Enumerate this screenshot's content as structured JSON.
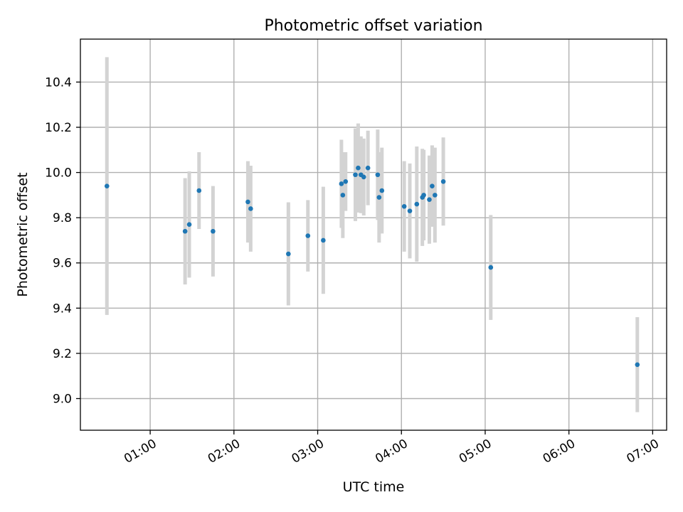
{
  "chart_data": {
    "type": "scatter",
    "title": "Photometric offset variation",
    "xlabel": "UTC time",
    "ylabel": "Photometric offset",
    "xlim": [
      "00:10",
      "07:10"
    ],
    "ylim": [
      8.86,
      10.59
    ],
    "grid": true,
    "x_ticks": [
      "01:00",
      "02:00",
      "03:00",
      "04:00",
      "05:00",
      "06:00",
      "07:00"
    ],
    "y_ticks": [
      "9.0",
      "9.2",
      "9.4",
      "9.6",
      "9.8",
      "10.0",
      "10.2",
      "10.4"
    ],
    "colors": {
      "points": "#1f77b4",
      "error_bars": "#d3d3d3",
      "grid": "#b0b0b0"
    },
    "series": [
      {
        "points": [
          {
            "x": "00:29",
            "y": 9.94,
            "err": 0.57
          },
          {
            "x": "01:25",
            "y": 9.74,
            "err": 0.235
          },
          {
            "x": "01:28",
            "y": 9.77,
            "err": 0.235
          },
          {
            "x": "01:35",
            "y": 9.92,
            "err": 0.17
          },
          {
            "x": "01:45",
            "y": 9.74,
            "err": 0.2
          },
          {
            "x": "02:10",
            "y": 9.87,
            "err": 0.18
          },
          {
            "x": "02:12",
            "y": 9.84,
            "err": 0.19
          },
          {
            "x": "02:39",
            "y": 9.64,
            "err": 0.228
          },
          {
            "x": "02:53",
            "y": 9.72,
            "err": 0.158
          },
          {
            "x": "03:04",
            "y": 9.7,
            "err": 0.237
          },
          {
            "x": "03:17",
            "y": 9.95,
            "err": 0.195
          },
          {
            "x": "03:18",
            "y": 9.9,
            "err": 0.19
          },
          {
            "x": "03:20",
            "y": 9.96,
            "err": 0.13
          },
          {
            "x": "03:27",
            "y": 9.99,
            "err": 0.205
          },
          {
            "x": "03:29",
            "y": 10.02,
            "err": 0.197
          },
          {
            "x": "03:31",
            "y": 9.99,
            "err": 0.17
          },
          {
            "x": "03:33",
            "y": 9.98,
            "err": 0.17
          },
          {
            "x": "03:36",
            "y": 10.02,
            "err": 0.165
          },
          {
            "x": "03:43",
            "y": 9.99,
            "err": 0.2
          },
          {
            "x": "03:44",
            "y": 9.89,
            "err": 0.2
          },
          {
            "x": "03:46",
            "y": 9.92,
            "err": 0.19
          },
          {
            "x": "04:02",
            "y": 9.85,
            "err": 0.2
          },
          {
            "x": "04:06",
            "y": 9.83,
            "err": 0.21
          },
          {
            "x": "04:11",
            "y": 9.86,
            "err": 0.255
          },
          {
            "x": "04:15",
            "y": 9.89,
            "err": 0.215
          },
          {
            "x": "04:16",
            "y": 9.9,
            "err": 0.2
          },
          {
            "x": "04:20",
            "y": 9.88,
            "err": 0.195
          },
          {
            "x": "04:22",
            "y": 9.94,
            "err": 0.18
          },
          {
            "x": "04:24",
            "y": 9.9,
            "err": 0.21
          },
          {
            "x": "04:30",
            "y": 9.96,
            "err": 0.195
          },
          {
            "x": "05:04",
            "y": 9.58,
            "err": 0.232
          },
          {
            "x": "06:49",
            "y": 9.15,
            "err": 0.21
          }
        ]
      }
    ]
  }
}
